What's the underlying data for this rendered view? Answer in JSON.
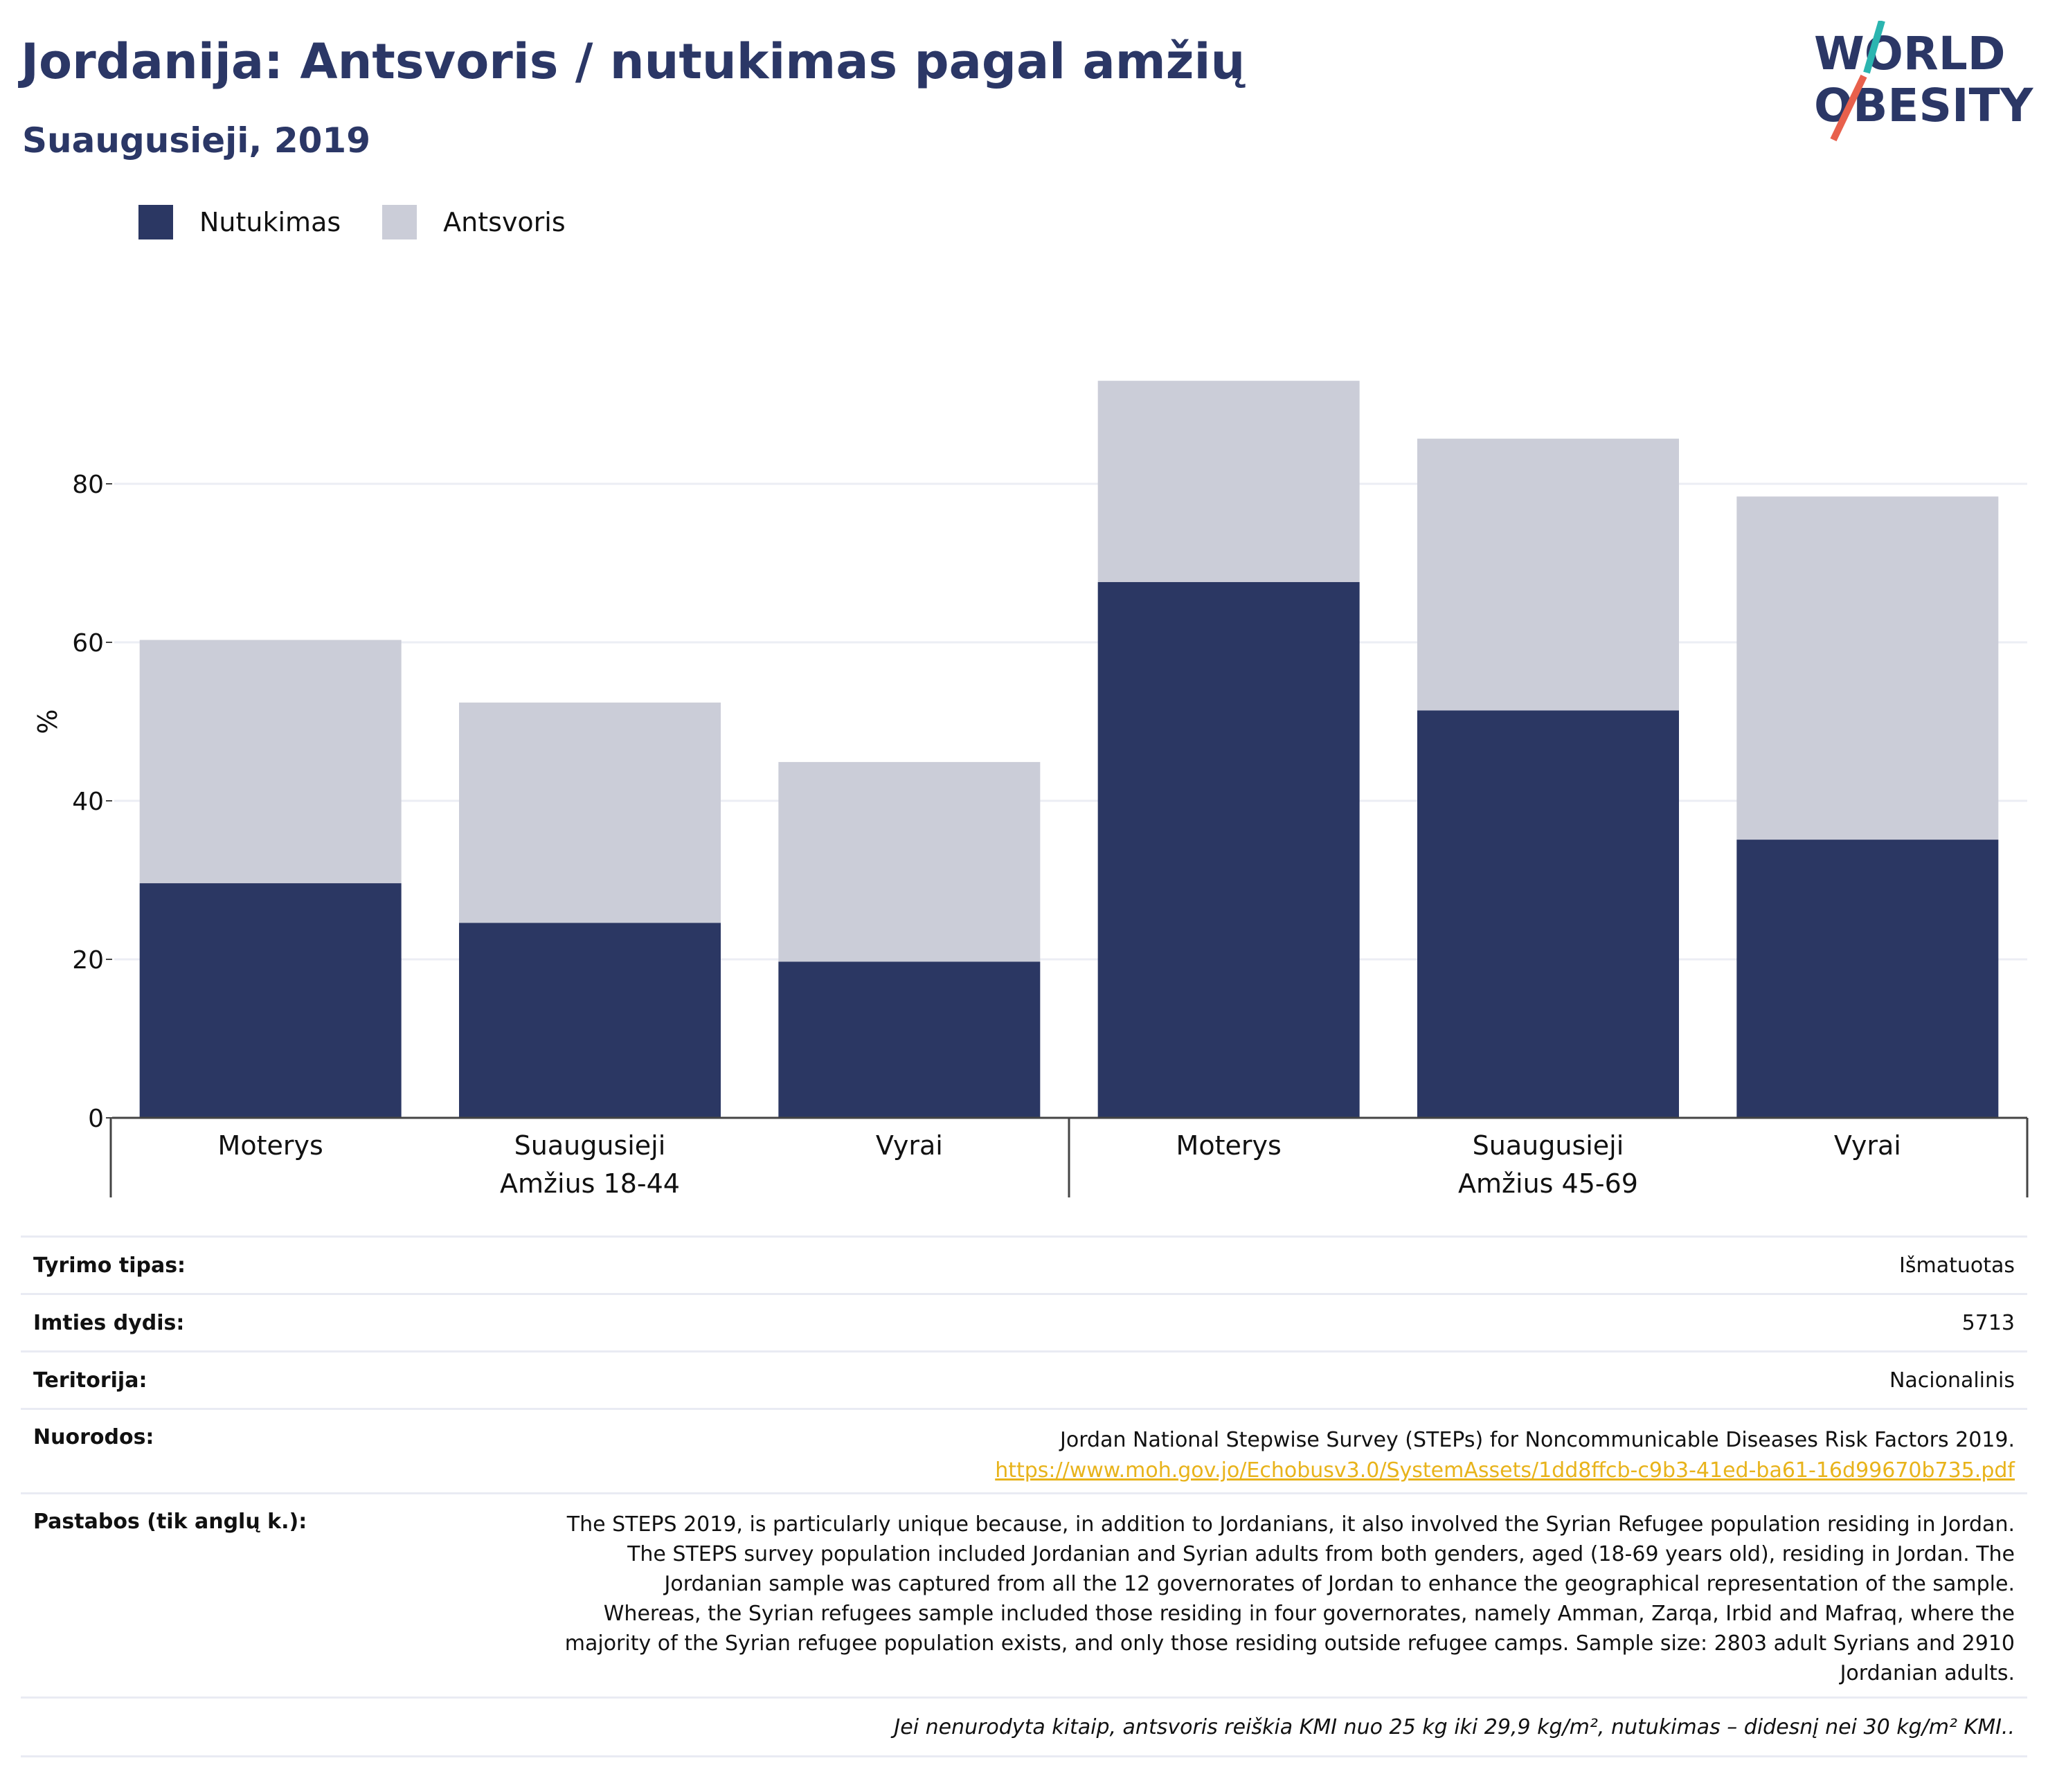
{
  "header": {
    "title": "Jordanija: Antsvoris / nutukimas pagal amžių",
    "subtitle": "Suaugusieji, 2019"
  },
  "logo": {
    "line1": "WORLD",
    "line2": "OBESITY"
  },
  "colors": {
    "obesity": "#2b3763",
    "overweight": "#cbcdd8",
    "brand": "#2b3766",
    "link": "#e8b31b",
    "logo_teal": "#2bb5b0",
    "logo_red": "#e8604c"
  },
  "chart_data": {
    "type": "bar",
    "stacked": true,
    "ylabel": "%",
    "ylim": [
      0,
      100
    ],
    "yticks": [
      0,
      20,
      40,
      60,
      80
    ],
    "grid": true,
    "legend_position": "top-left",
    "groups": [
      {
        "name": "Amžius 18-44",
        "categories": [
          "Moterys",
          "Suaugusieji",
          "Vyrai"
        ]
      },
      {
        "name": "Amžius 45-69",
        "categories": [
          "Moterys",
          "Suaugusieji",
          "Vyrai"
        ]
      }
    ],
    "categories": [
      "Moterys",
      "Suaugusieji",
      "Vyrai",
      "Moterys",
      "Suaugusieji",
      "Vyrai"
    ],
    "series": [
      {
        "name": "Nutukimas",
        "values": [
          29.6,
          24.6,
          19.7,
          67.6,
          51.4,
          35.1
        ]
      },
      {
        "name": "Antsvoris",
        "values": [
          30.7,
          27.8,
          25.2,
          25.4,
          34.3,
          43.3
        ]
      }
    ]
  },
  "info": {
    "survey_type": {
      "label": "Tyrimo tipas:",
      "value": "Išmatuotas"
    },
    "sample_size": {
      "label": "Imties dydis:",
      "value": "5713"
    },
    "territory": {
      "label": "Teritorija:",
      "value": "Nacionalinis"
    },
    "references": {
      "label": "Nuorodos:",
      "value": "Jordan National Stepwise Survey (STEPs) for Noncommunicable Diseases Risk Factors 2019.",
      "link": "https://www.moh.gov.jo/Echobusv3.0/SystemAssets/1dd8ffcb-c9b3-41ed-ba61-16d99670b735.pdf"
    },
    "notes": {
      "label": "Pastabos (tik anglų k.):",
      "value": "The STEPS 2019, is particularly unique because, in addition to Jordanians, it also involved the Syrian Refugee population residing in Jordan. The STEPS survey population included Jordanian and Syrian adults from both genders, aged (18-69 years old), residing in Jordan. The Jordanian sample was captured from all the 12 governorates of Jordan to enhance the geographical representation of the sample. Whereas, the Syrian refugees sample included those residing in four governorates, namely Amman, Zarqa, Irbid and Mafraq, where the majority of the Syrian refugee population exists, and only those residing outside refugee camps. Sample size: 2803 adult Syrians and 2910 Jordanian adults."
    },
    "footnote": "Jei nenurodyta kitaip, antsvoris reiškia KMI nuo 25 kg iki 29,9 kg/m², nutukimas – didesnį nei 30 kg/m² KMI.."
  }
}
